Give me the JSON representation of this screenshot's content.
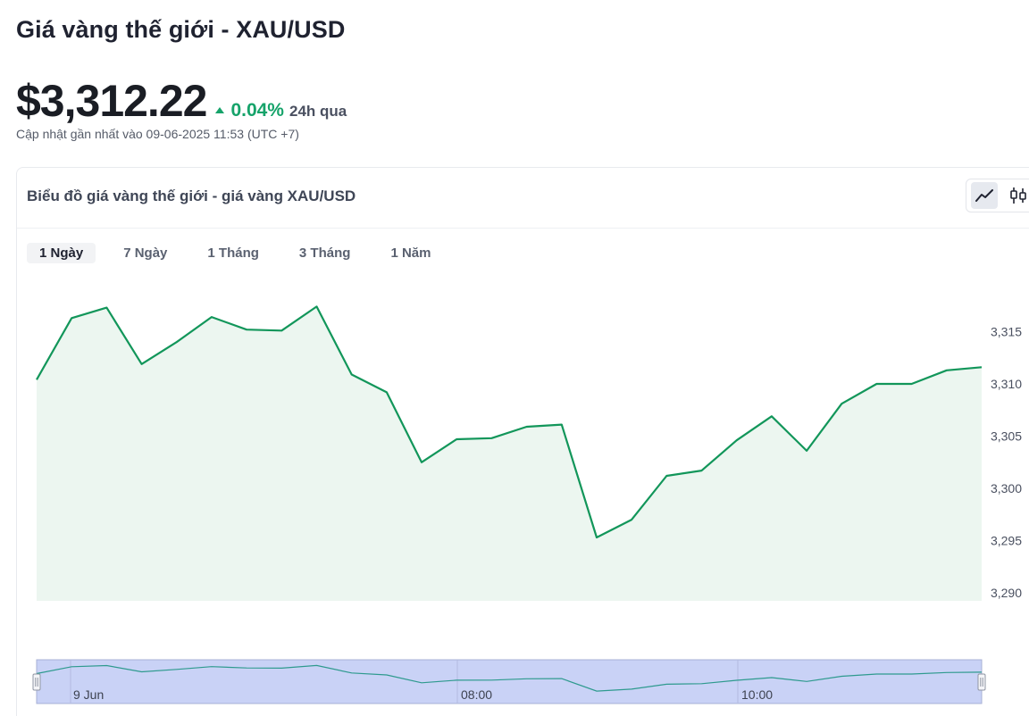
{
  "page": {
    "title": "Giá vàng thế giới - XAU/USD",
    "price": "$3,312.22",
    "change_pct": "0.04%",
    "change_period": "24h qua",
    "updated": "Cập nhật gần nhất vào 09-06-2025 11:53 (UTC +7)"
  },
  "card": {
    "title": "Biểu đồ giá vàng thế giới - giá vàng XAU/USD",
    "chart_types": [
      "line-chart-icon",
      "candlestick-icon"
    ]
  },
  "range_tabs": [
    {
      "label": "1 Ngày",
      "active": true
    },
    {
      "label": "7 Ngày",
      "active": false
    },
    {
      "label": "1 Tháng",
      "active": false
    },
    {
      "label": "3 Tháng",
      "active": false
    },
    {
      "label": "1 Năm",
      "active": false
    }
  ],
  "colors": {
    "line": "#12965a",
    "area": "#ecf6f0",
    "up": "#16a36a",
    "navigator_fill": "#c9d2f6",
    "navigator_line": "#2e9a8e"
  },
  "chart_data": {
    "type": "area",
    "title": "",
    "xlabel": "",
    "ylabel": "",
    "ylim": [
      3290,
      3318
    ],
    "y_ticks": [
      "3,290",
      "3,295",
      "3,300",
      "3,305",
      "3,310",
      "3,315"
    ],
    "y_tick_values": [
      3290,
      3295,
      3300,
      3305,
      3310,
      3315
    ],
    "values": [
      3310.4,
      3316.3,
      3317.3,
      3311.9,
      3314.0,
      3316.4,
      3315.2,
      3315.1,
      3317.4,
      3310.9,
      3309.2,
      3302.5,
      3304.7,
      3304.8,
      3305.9,
      3306.1,
      3295.3,
      3297.0,
      3301.2,
      3301.7,
      3304.6,
      3306.9,
      3303.6,
      3308.1,
      3310.0,
      3310.0,
      3311.3,
      3311.6
    ],
    "navigator_labels": [
      "9 Jun",
      "08:00",
      "10:00"
    ]
  }
}
